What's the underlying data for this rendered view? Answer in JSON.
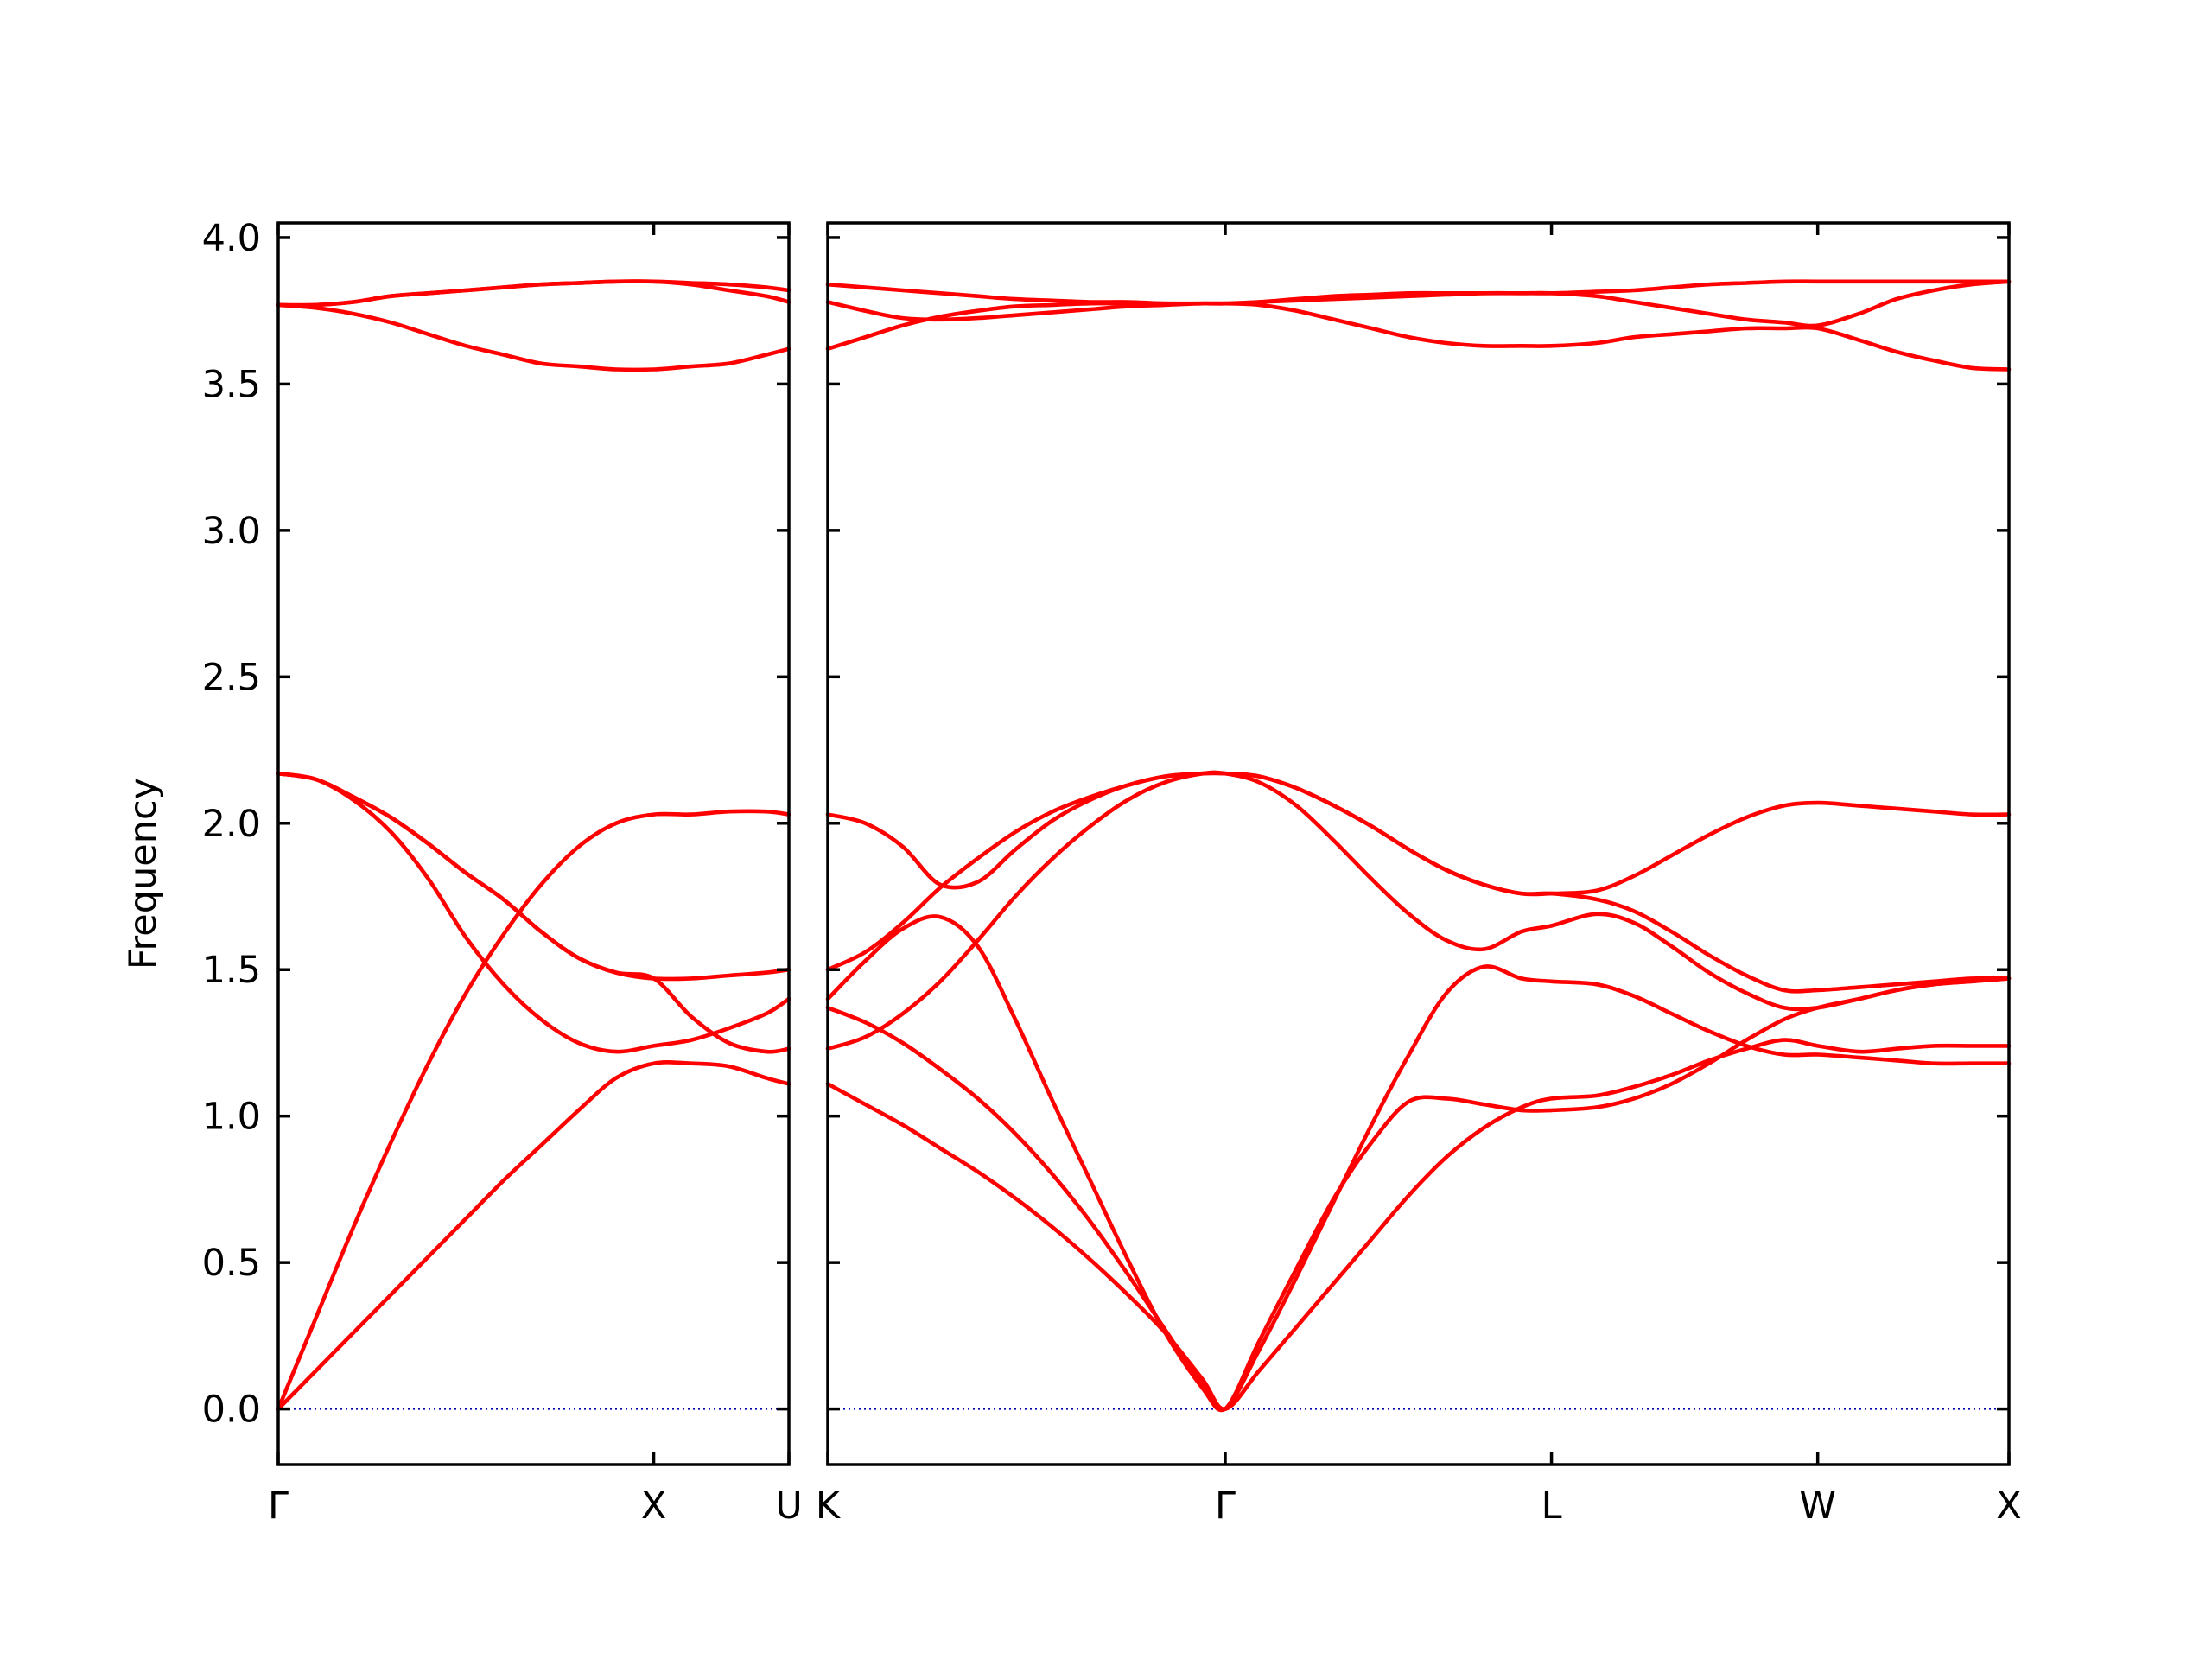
{
  "chart_data": {
    "type": "line",
    "title": "",
    "xlabel": "",
    "ylabel": "Frequency",
    "ylim": [
      -0.19,
      4.05
    ],
    "yticks": [
      "0.0",
      "0.5",
      "1.0",
      "1.5",
      "2.0",
      "2.5",
      "3.0",
      "3.5",
      "4.0"
    ],
    "grid": false,
    "band_color": "#ff0000",
    "zero_line_color": "#0000aa",
    "panels": [
      {
        "name": "left",
        "x_range": [
          0,
          1.36
        ],
        "ticks": [
          {
            "x": 0,
            "label": "Γ"
          },
          {
            "x": 1.0,
            "label": "X"
          },
          {
            "x": 1.36,
            "label": "U"
          }
        ],
        "bands": [
          {
            "x": [
              0,
              0.1,
              0.2,
              0.3,
              0.4,
              0.5,
              0.6,
              0.7,
              0.8,
              0.9,
              1.0,
              1.1,
              1.2,
              1.3,
              1.36
            ],
            "y": [
              0.0,
              0.13,
              0.26,
              0.39,
              0.52,
              0.65,
              0.78,
              0.9,
              1.02,
              1.13,
              1.18,
              1.18,
              1.17,
              1.13,
              1.11
            ]
          },
          {
            "x": [
              0,
              0.1,
              0.2,
              0.3,
              0.4,
              0.5,
              0.6,
              0.7,
              0.8,
              0.9,
              1.0,
              1.1,
              1.2,
              1.3,
              1.36
            ],
            "y": [
              0.0,
              0.31,
              0.62,
              0.91,
              1.18,
              1.42,
              1.62,
              1.79,
              1.92,
              2.0,
              2.03,
              2.03,
              2.04,
              2.04,
              2.03
            ]
          },
          {
            "x": [
              0,
              0.1,
              0.2,
              0.3,
              0.4,
              0.5,
              0.6,
              0.7,
              0.8,
              0.9,
              1.0,
              1.1,
              1.2,
              1.3,
              1.36
            ],
            "y": [
              2.17,
              2.15,
              2.08,
              1.97,
              1.81,
              1.61,
              1.45,
              1.33,
              1.25,
              1.22,
              1.24,
              1.26,
              1.3,
              1.35,
              1.4
            ]
          },
          {
            "x": [
              0,
              0.1,
              0.2,
              0.3,
              0.4,
              0.5,
              0.6,
              0.7,
              0.8,
              0.9,
              1.0,
              1.1,
              1.2,
              1.3,
              1.36
            ],
            "y": [
              2.17,
              2.15,
              2.09,
              2.02,
              1.93,
              1.83,
              1.74,
              1.63,
              1.54,
              1.49,
              1.47,
              1.34,
              1.25,
              1.22,
              1.23
            ]
          },
          {
            "x": [
              0,
              0.1,
              0.2,
              0.3,
              0.4,
              0.5,
              0.6,
              0.7,
              0.8,
              0.9,
              1.0,
              1.1,
              1.2,
              1.3,
              1.36
            ],
            "y": [
              2.17,
              2.15,
              2.09,
              2.02,
              1.93,
              1.83,
              1.74,
              1.63,
              1.54,
              1.49,
              1.47,
              1.47,
              1.48,
              1.49,
              1.5
            ]
          },
          {
            "x": [
              0,
              0.1,
              0.2,
              0.3,
              0.4,
              0.5,
              0.6,
              0.7,
              0.8,
              0.9,
              1.0,
              1.1,
              1.2,
              1.3,
              1.36
            ],
            "y": [
              3.77,
              3.76,
              3.74,
              3.71,
              3.67,
              3.63,
              3.6,
              3.57,
              3.56,
              3.55,
              3.55,
              3.56,
              3.57,
              3.6,
              3.62
            ]
          },
          {
            "x": [
              0,
              0.1,
              0.2,
              0.3,
              0.4,
              0.5,
              0.6,
              0.7,
              0.8,
              0.9,
              1.0,
              1.1,
              1.2,
              1.3,
              1.36
            ],
            "y": [
              3.77,
              3.77,
              3.78,
              3.8,
              3.81,
              3.82,
              3.83,
              3.84,
              3.845,
              3.85,
              3.85,
              3.845,
              3.84,
              3.83,
              3.82
            ]
          },
          {
            "x": [
              0,
              0.1,
              0.2,
              0.3,
              0.4,
              0.5,
              0.6,
              0.7,
              0.8,
              0.9,
              1.0,
              1.1,
              1.2,
              1.3,
              1.36
            ],
            "y": [
              3.77,
              3.77,
              3.78,
              3.8,
              3.81,
              3.82,
              3.83,
              3.84,
              3.845,
              3.85,
              3.85,
              3.84,
              3.82,
              3.8,
              3.78
            ]
          }
        ]
      },
      {
        "name": "right",
        "x_range": [
          0,
          3.15
        ],
        "ticks": [
          {
            "x": 0,
            "label": "K"
          },
          {
            "x": 1.06,
            "label": "Γ"
          },
          {
            "x": 1.93,
            "label": "L"
          },
          {
            "x": 2.64,
            "label": "W"
          },
          {
            "x": 3.15,
            "label": "X"
          }
        ],
        "bands": [
          {
            "x": [
              0,
              0.1,
              0.2,
              0.3,
              0.4,
              0.5,
              0.6,
              0.7,
              0.8,
              0.9,
              1.0,
              1.06,
              1.15,
              1.25,
              1.35,
              1.45,
              1.55,
              1.65,
              1.75,
              1.85,
              1.93,
              2.05,
              2.15,
              2.25,
              2.35,
              2.45,
              2.55,
              2.64,
              2.75,
              2.85,
              2.95,
              3.05,
              3.15
            ],
            "y": [
              1.11,
              1.04,
              0.97,
              0.89,
              0.81,
              0.72,
              0.62,
              0.51,
              0.39,
              0.26,
              0.1,
              0.0,
              0.13,
              0.28,
              0.43,
              0.58,
              0.73,
              0.86,
              0.96,
              1.03,
              1.06,
              1.07,
              1.1,
              1.14,
              1.19,
              1.23,
              1.26,
              1.24,
              1.22,
              1.23,
              1.24,
              1.24,
              1.24
            ]
          },
          {
            "x": [
              0,
              0.1,
              0.2,
              0.3,
              0.4,
              0.5,
              0.6,
              0.7,
              0.8,
              0.9,
              1.0,
              1.06,
              1.15,
              1.25,
              1.35,
              1.45,
              1.55,
              1.65,
              1.75,
              1.85,
              1.93,
              2.05,
              2.15,
              2.25,
              2.35,
              2.45,
              2.55,
              2.64,
              2.75,
              2.85,
              2.95,
              3.05,
              3.15
            ],
            "y": [
              1.37,
              1.32,
              1.25,
              1.16,
              1.06,
              0.94,
              0.8,
              0.64,
              0.46,
              0.27,
              0.08,
              0.0,
              0.2,
              0.45,
              0.71,
              0.97,
              1.21,
              1.42,
              1.51,
              1.47,
              1.46,
              1.45,
              1.41,
              1.35,
              1.29,
              1.24,
              1.21,
              1.21,
              1.2,
              1.19,
              1.18,
              1.18,
              1.18
            ]
          },
          {
            "x": [
              0,
              0.1,
              0.2,
              0.3,
              0.4,
              0.5,
              0.6,
              0.7,
              0.8,
              0.9,
              1.0,
              1.06,
              1.15,
              1.25,
              1.35,
              1.45,
              1.55,
              1.65,
              1.75,
              1.85,
              1.93,
              2.05,
              2.15,
              2.25,
              2.35,
              2.45,
              2.55,
              2.64,
              2.75,
              2.85,
              2.95,
              3.05,
              3.15
            ],
            "y": [
              1.4,
              1.53,
              1.64,
              1.68,
              1.58,
              1.33,
              1.05,
              0.78,
              0.51,
              0.26,
              0.07,
              0.0,
              0.23,
              0.48,
              0.72,
              0.91,
              1.05,
              1.06,
              1.04,
              1.02,
              1.02,
              1.03,
              1.06,
              1.11,
              1.18,
              1.26,
              1.33,
              1.37,
              1.4,
              1.43,
              1.45,
              1.46,
              1.47
            ]
          },
          {
            "x": [
              0,
              0.1,
              0.2,
              0.3,
              0.4,
              0.5,
              0.6,
              0.7,
              0.8,
              0.9,
              1.0,
              1.06,
              1.15,
              1.25,
              1.35,
              1.45,
              1.55,
              1.65,
              1.75,
              1.85,
              1.93,
              2.05,
              2.15,
              2.25,
              2.35,
              2.45,
              2.55,
              2.64,
              2.75,
              2.85,
              2.95,
              3.05,
              3.15
            ],
            "y": [
              1.23,
              1.27,
              1.35,
              1.46,
              1.6,
              1.75,
              1.88,
              1.99,
              2.08,
              2.14,
              2.17,
              2.17,
              2.14,
              2.06,
              1.94,
              1.81,
              1.69,
              1.6,
              1.57,
              1.63,
              1.65,
              1.69,
              1.66,
              1.58,
              1.49,
              1.42,
              1.37,
              1.37,
              1.4,
              1.43,
              1.45,
              1.46,
              1.47
            ]
          },
          {
            "x": [
              0,
              0.1,
              0.2,
              0.3,
              0.4,
              0.5,
              0.6,
              0.7,
              0.8,
              0.9,
              1.0,
              1.06,
              1.15,
              1.25,
              1.35,
              1.45,
              1.55,
              1.65,
              1.75,
              1.85,
              1.93,
              2.05,
              2.15,
              2.25,
              2.35,
              2.45,
              2.55,
              2.64,
              2.75,
              2.85,
              2.95,
              3.05,
              3.15
            ],
            "y": [
              1.5,
              1.56,
              1.66,
              1.78,
              1.88,
              1.97,
              2.04,
              2.09,
              2.13,
              2.16,
              2.17,
              2.17,
              2.16,
              2.12,
              2.06,
              1.99,
              1.91,
              1.84,
              1.79,
              1.76,
              1.76,
              1.74,
              1.7,
              1.63,
              1.55,
              1.48,
              1.43,
              1.43,
              1.44,
              1.45,
              1.46,
              1.47,
              1.47
            ]
          },
          {
            "x": [
              0,
              0.1,
              0.2,
              0.3,
              0.4,
              0.5,
              0.6,
              0.7,
              0.8,
              0.9,
              1.0,
              1.06,
              1.15,
              1.25,
              1.35,
              1.45,
              1.55,
              1.65,
              1.75,
              1.85,
              1.93,
              2.05,
              2.15,
              2.25,
              2.35,
              2.45,
              2.55,
              2.64,
              2.75,
              2.85,
              2.95,
              3.05,
              3.15
            ],
            "y": [
              2.03,
              2.0,
              1.92,
              1.79,
              1.8,
              1.91,
              2.01,
              2.08,
              2.13,
              2.16,
              2.17,
              2.17,
              2.16,
              2.12,
              2.06,
              1.99,
              1.91,
              1.84,
              1.79,
              1.76,
              1.76,
              1.77,
              1.82,
              1.89,
              1.96,
              2.02,
              2.06,
              2.07,
              2.06,
              2.05,
              2.04,
              2.03,
              2.03
            ]
          },
          {
            "x": [
              0,
              0.1,
              0.2,
              0.3,
              0.4,
              0.5,
              0.6,
              0.7,
              0.8,
              0.9,
              1.0,
              1.06,
              1.15,
              1.25,
              1.35,
              1.45,
              1.55,
              1.65,
              1.75,
              1.85,
              1.93,
              2.05,
              2.15,
              2.25,
              2.35,
              2.45,
              2.55,
              2.64,
              2.75,
              2.85,
              2.95,
              3.05,
              3.15
            ],
            "y": [
              3.62,
              3.66,
              3.7,
              3.73,
              3.75,
              3.765,
              3.77,
              3.775,
              3.775,
              3.775,
              3.775,
              3.775,
              3.77,
              3.75,
              3.72,
              3.69,
              3.66,
              3.64,
              3.63,
              3.63,
              3.63,
              3.64,
              3.66,
              3.67,
              3.68,
              3.69,
              3.69,
              3.69,
              3.65,
              3.61,
              3.58,
              3.555,
              3.55
            ]
          },
          {
            "x": [
              0,
              0.1,
              0.2,
              0.3,
              0.4,
              0.5,
              0.6,
              0.7,
              0.8,
              0.9,
              1.0,
              1.06,
              1.15,
              1.25,
              1.35,
              1.45,
              1.55,
              1.65,
              1.75,
              1.85,
              1.93,
              2.05,
              2.15,
              2.25,
              2.35,
              2.45,
              2.55,
              2.64,
              2.75,
              2.85,
              2.95,
              3.05,
              3.15
            ],
            "y": [
              3.78,
              3.75,
              3.725,
              3.72,
              3.725,
              3.735,
              3.745,
              3.755,
              3.765,
              3.77,
              3.775,
              3.775,
              3.78,
              3.79,
              3.8,
              3.805,
              3.81,
              3.81,
              3.81,
              3.81,
              3.81,
              3.8,
              3.78,
              3.76,
              3.74,
              3.72,
              3.71,
              3.7,
              3.74,
              3.79,
              3.82,
              3.84,
              3.85
            ]
          },
          {
            "x": [
              0,
              0.1,
              0.2,
              0.3,
              0.4,
              0.5,
              0.6,
              0.7,
              0.8,
              0.9,
              1.0,
              1.06,
              1.15,
              1.25,
              1.35,
              1.45,
              1.55,
              1.65,
              1.75,
              1.85,
              1.93,
              2.05,
              2.15,
              2.25,
              2.35,
              2.45,
              2.55,
              2.64,
              2.75,
              2.85,
              2.95,
              3.05,
              3.15
            ],
            "y": [
              3.84,
              3.83,
              3.82,
              3.81,
              3.8,
              3.79,
              3.785,
              3.78,
              3.78,
              3.775,
              3.775,
              3.775,
              3.78,
              3.785,
              3.79,
              3.795,
              3.8,
              3.805,
              3.81,
              3.81,
              3.81,
              3.815,
              3.82,
              3.83,
              3.84,
              3.845,
              3.85,
              3.85,
              3.85,
              3.85,
              3.85,
              3.85,
              3.85
            ]
          }
        ]
      }
    ]
  }
}
